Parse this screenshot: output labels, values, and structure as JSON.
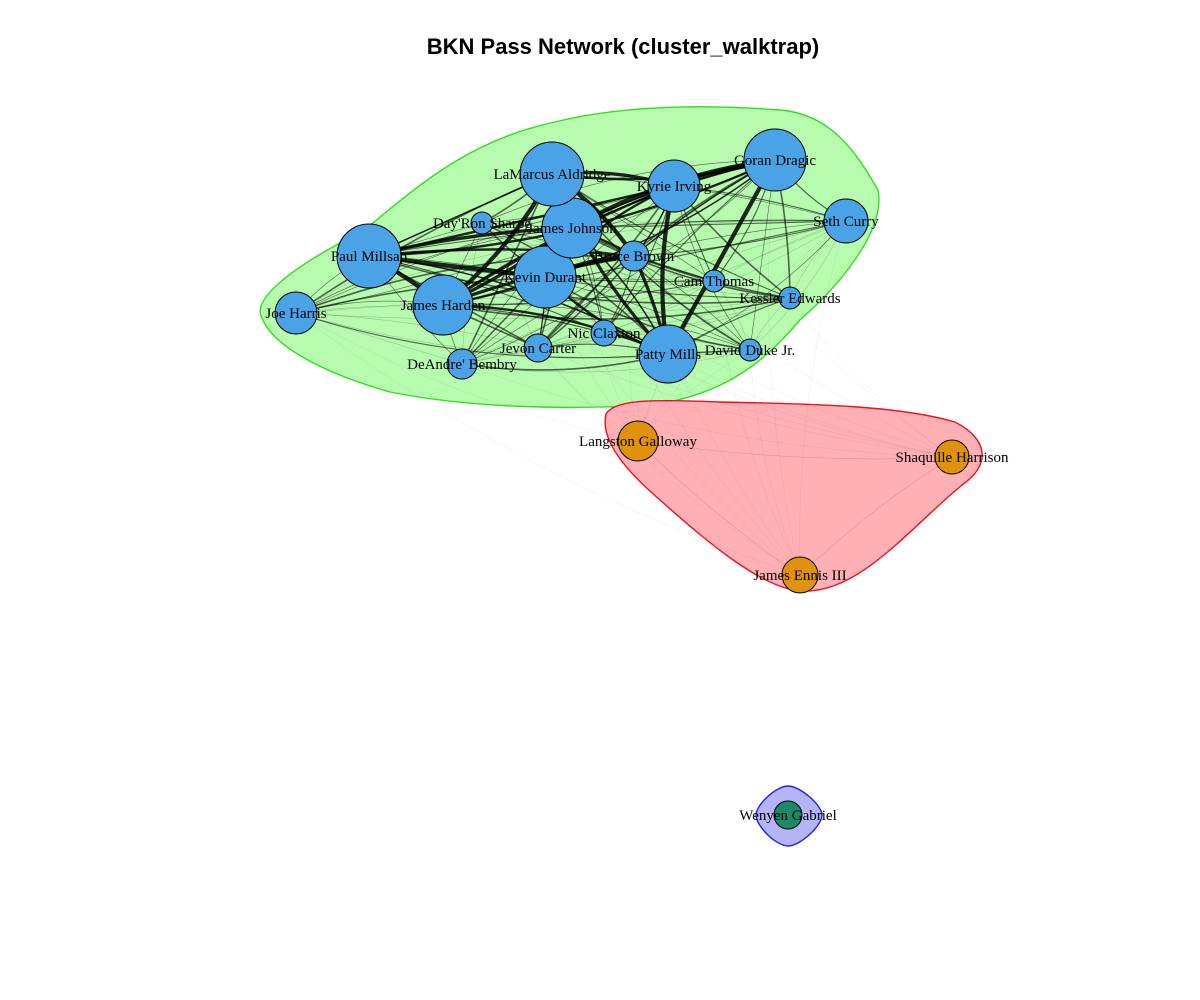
{
  "title": "BKN Pass Network (cluster_walktrap)",
  "colors": {
    "cluster1_fill": "#b7fbaf",
    "cluster1_stroke": "#33dd22",
    "cluster1_node": "#4aa3e6",
    "cluster2_fill": "#ffb0b5",
    "cluster2_stroke": "#ee1122",
    "cluster2_node": "#e0920c",
    "cluster3_fill": "#b4b4f6",
    "cluster3_stroke": "#2222dd",
    "cluster3_node": "#1b8a66"
  },
  "clusters": [
    {
      "id": 1,
      "nodes": [
        "Kevin Durant",
        "James Harden",
        "James Johnson",
        "LaMarcus Aldridge",
        "Goran Dragic",
        "Kyrie Irving",
        "Seth Curry",
        "Paul Millsap",
        "Joe Harris",
        "Patty Mills",
        "Bruce Brown",
        "Day'Ron Sharpe",
        "Cam Thomas",
        "Kessler Edwards",
        "David Duke Jr.",
        "Nic Claxton",
        "Jevon Carter",
        "DeAndre' Bembry"
      ]
    },
    {
      "id": 2,
      "nodes": [
        "Langston Galloway",
        "Shaquille Harrison",
        "James Ennis III"
      ]
    },
    {
      "id": 3,
      "nodes": [
        "Wenyen Gabriel"
      ]
    }
  ],
  "nodes": [
    {
      "name": "Kevin Durant",
      "label": "Kevin Durant",
      "cluster": 1
    },
    {
      "name": "James Harden",
      "label": "James Harden",
      "cluster": 1
    },
    {
      "name": "James Johnson",
      "label": "James Johnson",
      "cluster": 1
    },
    {
      "name": "LaMarcus Aldridge",
      "label": "LaMarcus Aldridge",
      "cluster": 1
    },
    {
      "name": "Goran Dragic",
      "label": "Goran Dragic",
      "cluster": 1
    },
    {
      "name": "Kyrie Irving",
      "label": "Kyrie Irving",
      "cluster": 1
    },
    {
      "name": "Seth Curry",
      "label": "Seth Curry",
      "cluster": 1
    },
    {
      "name": "Paul Millsap",
      "label": "Paul Millsap",
      "cluster": 1
    },
    {
      "name": "Joe Harris",
      "label": "Joe Harris",
      "cluster": 1
    },
    {
      "name": "Patty Mills",
      "label": "Patty Mills",
      "cluster": 1
    },
    {
      "name": "Bruce Brown",
      "label": "Bruce Brown",
      "cluster": 1
    },
    {
      "name": "Day'Ron Sharpe",
      "label": "Day'Ron Sharpe",
      "cluster": 1
    },
    {
      "name": "Cam Thomas",
      "label": "Cam Thomas",
      "cluster": 1
    },
    {
      "name": "Kessler Edwards",
      "label": "Kessler Edwards",
      "cluster": 1
    },
    {
      "name": "David Duke Jr.",
      "label": "David Duke Jr.",
      "cluster": 1
    },
    {
      "name": "Nic Claxton",
      "label": "Nic Claxton",
      "cluster": 1
    },
    {
      "name": "Jevon Carter",
      "label": "Jevon Carter",
      "cluster": 1
    },
    {
      "name": "DeAndre' Bembry",
      "label": "DeAndre' Bembry",
      "cluster": 1
    },
    {
      "name": "Langston Galloway",
      "label": "Langston Galloway",
      "cluster": 2
    },
    {
      "name": "Shaquille Harrison",
      "label": "Shaquille Harrison",
      "cluster": 2
    },
    {
      "name": "James Ennis III",
      "label": "James Ennis III",
      "cluster": 2
    },
    {
      "name": "Wenyen Gabriel",
      "label": "Wenyen Gabriel",
      "cluster": 3
    }
  ]
}
